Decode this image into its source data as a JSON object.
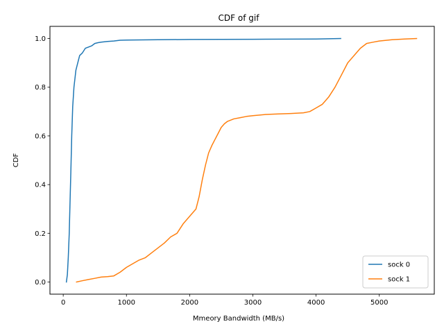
{
  "chart_data": {
    "type": "line",
    "title": "CDF of gif",
    "xlabel": "Mmeory Bandwidth (MB/s)",
    "ylabel": "CDF",
    "xlim": [
      -210,
      5870
    ],
    "ylim": [
      -0.05,
      1.05
    ],
    "xticks": [
      0,
      1000,
      2000,
      3000,
      4000,
      5000
    ],
    "xtick_labels": [
      "0",
      "1000",
      "2000",
      "3000",
      "4000",
      "5000"
    ],
    "yticks": [
      0.0,
      0.2,
      0.4,
      0.6,
      0.8,
      1.0
    ],
    "ytick_labels": [
      "0.0",
      "0.2",
      "0.4",
      "0.6",
      "0.8",
      "1.0"
    ],
    "grid": false,
    "legend_position": "bottom-right",
    "series": [
      {
        "name": "sock 0",
        "color": "#1f77b4",
        "x": [
          50,
          65,
          80,
          95,
          105,
          120,
          135,
          150,
          170,
          200,
          230,
          260,
          300,
          350,
          400,
          450,
          500,
          550,
          600,
          700,
          800,
          900,
          1000,
          1500,
          2000,
          3000,
          4000,
          4390
        ],
        "y": [
          0.0,
          0.03,
          0.1,
          0.2,
          0.3,
          0.45,
          0.6,
          0.72,
          0.8,
          0.87,
          0.9,
          0.93,
          0.94,
          0.96,
          0.965,
          0.97,
          0.98,
          0.983,
          0.985,
          0.988,
          0.99,
          0.993,
          0.994,
          0.995,
          0.996,
          0.997,
          0.998,
          1.0
        ]
      },
      {
        "name": "sock 1",
        "color": "#ff7f0e",
        "x": [
          210,
          300,
          400,
          500,
          600,
          700,
          800,
          900,
          1000,
          1100,
          1200,
          1300,
          1400,
          1500,
          1600,
          1700,
          1800,
          1900,
          2000,
          2100,
          2150,
          2200,
          2250,
          2300,
          2350,
          2400,
          2450,
          2500,
          2550,
          2600,
          2700,
          2800,
          2900,
          3000,
          3200,
          3400,
          3600,
          3800,
          3900,
          4000,
          4100,
          4150,
          4200,
          4300,
          4400,
          4500,
          4600,
          4700,
          4800,
          4900,
          5000,
          5200,
          5400,
          5590
        ],
        "y": [
          0.0,
          0.005,
          0.01,
          0.015,
          0.02,
          0.022,
          0.025,
          0.04,
          0.06,
          0.075,
          0.09,
          0.1,
          0.12,
          0.14,
          0.16,
          0.185,
          0.2,
          0.24,
          0.27,
          0.3,
          0.35,
          0.42,
          0.48,
          0.53,
          0.56,
          0.585,
          0.61,
          0.635,
          0.65,
          0.66,
          0.67,
          0.675,
          0.68,
          0.683,
          0.688,
          0.69,
          0.692,
          0.695,
          0.7,
          0.715,
          0.73,
          0.745,
          0.76,
          0.8,
          0.85,
          0.9,
          0.93,
          0.96,
          0.98,
          0.985,
          0.99,
          0.995,
          0.998,
          1.0
        ]
      }
    ]
  }
}
